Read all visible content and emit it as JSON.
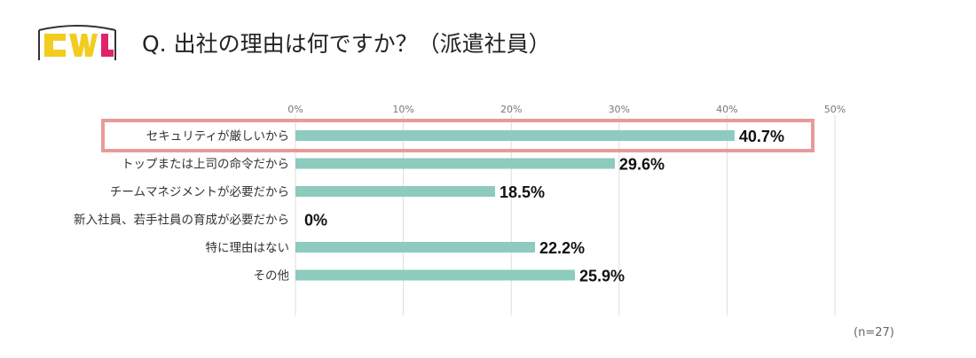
{
  "header": {
    "logo_text": "CWL",
    "title": "Q. 出社の理由は何ですか？（派遣社員）"
  },
  "note": "(n=27)",
  "colors": {
    "bar": "#8ccbbd",
    "highlight_border": "#e89a9a",
    "grid": "#dddddd",
    "logo_yellow": "#f2cc1f",
    "logo_pink": "#e0236b",
    "logo_dark": "#333333"
  },
  "chart_data": {
    "type": "bar",
    "orientation": "horizontal",
    "categories": [
      "セキュリティが厳しいから",
      "トップまたは上司の命令だから",
      "チームマネジメントが必要だから",
      "新入社員、若手社員の育成が必要だから",
      "特に理由はない",
      "その他"
    ],
    "values": [
      40.7,
      29.6,
      18.5,
      0,
      22.2,
      25.9
    ],
    "value_labels": [
      "40.7%",
      "29.6%",
      "18.5%",
      "0%",
      "22.2%",
      "25.9%"
    ],
    "xlim": [
      0,
      50
    ],
    "ticks": [
      0,
      10,
      20,
      30,
      40,
      50
    ],
    "tick_labels": [
      "0%",
      "10%",
      "20%",
      "30%",
      "40%",
      "50%"
    ],
    "highlighted_category": "セキュリティが厳しいから",
    "grid": true
  }
}
